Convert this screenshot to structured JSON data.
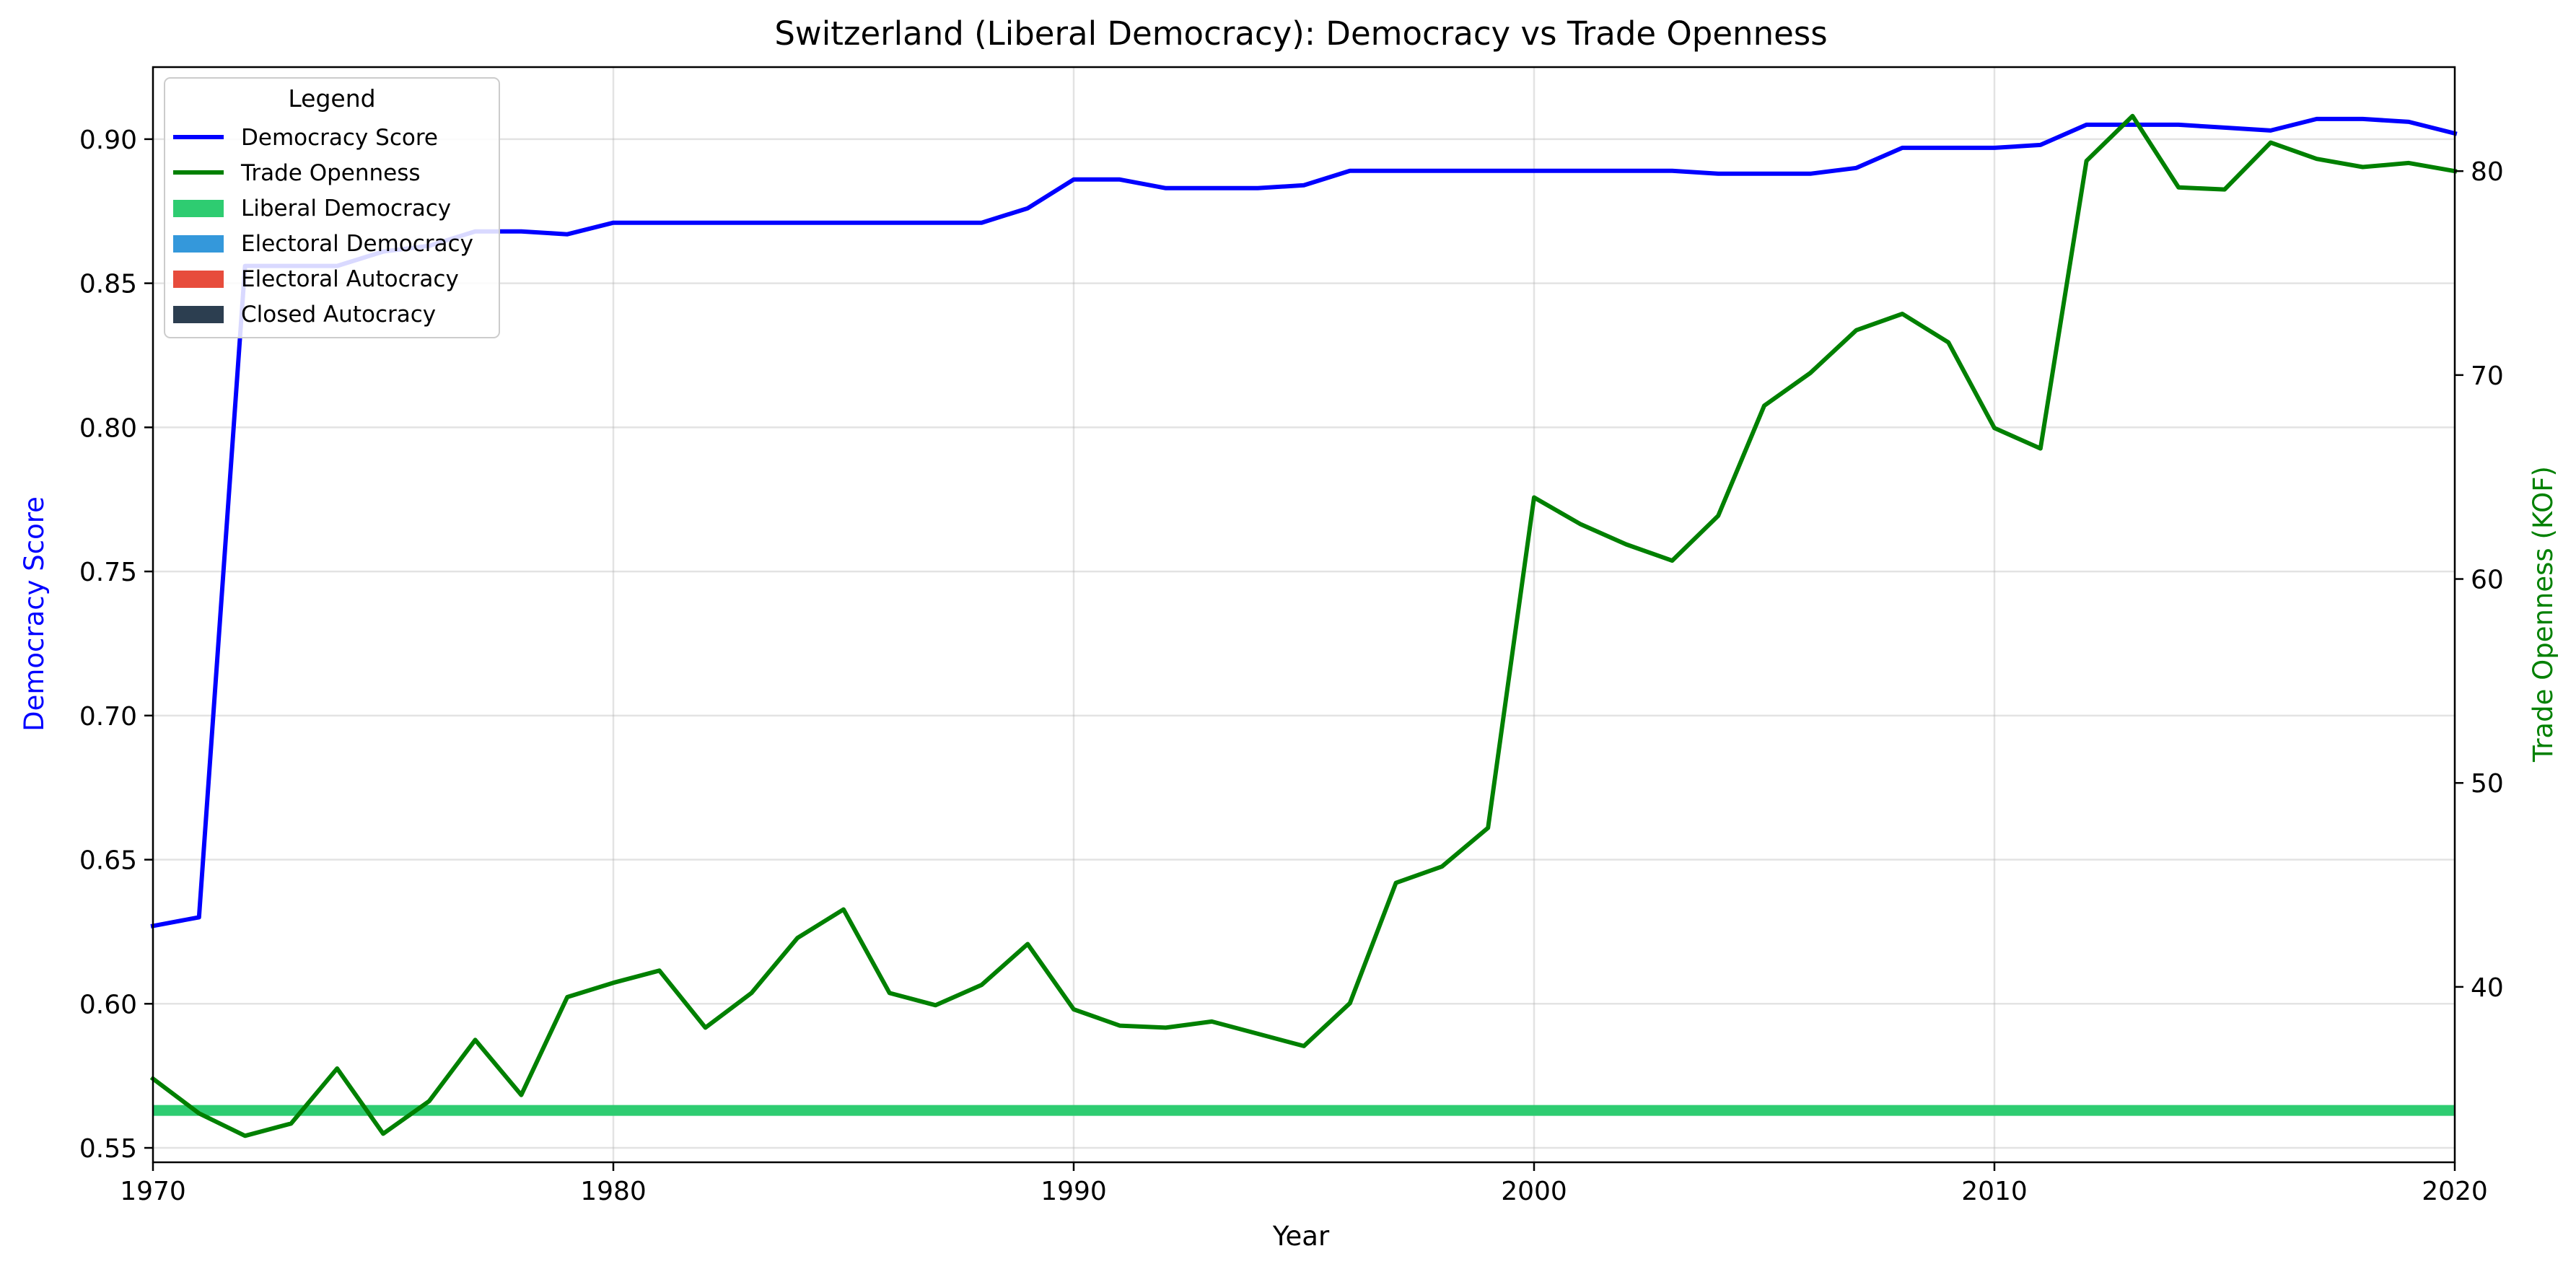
{
  "chart_data": {
    "type": "line",
    "title": "Switzerland (Liberal Democracy): Democracy vs Trade Openness",
    "xlabel": "Year",
    "ylabel_left": "Democracy Score",
    "ylabel_right": "Trade Openness (KOF)",
    "xlim": [
      1970,
      2020
    ],
    "ylim_left": [
      0.545,
      0.925
    ],
    "ylim_right": [
      31.4,
      85.1
    ],
    "x_ticks": [
      1970,
      1980,
      1990,
      2000,
      2010,
      2020
    ],
    "y_left_ticks": [
      "0.55",
      "0.60",
      "0.65",
      "0.70",
      "0.75",
      "0.80",
      "0.85",
      "0.90"
    ],
    "y_right_ticks": [
      40,
      50,
      60,
      70,
      80
    ],
    "grid": true,
    "legend": {
      "title": "Legend",
      "placement": "top-left",
      "entries": [
        {
          "label": "Democracy Score",
          "kind": "line",
          "color": "#0000ff"
        },
        {
          "label": "Trade Openness",
          "kind": "line",
          "color": "#008000"
        },
        {
          "label": "Liberal Democracy",
          "kind": "patch",
          "color": "#2ecc71"
        },
        {
          "label": "Electoral Democracy",
          "kind": "patch",
          "color": "#3498db"
        },
        {
          "label": "Electoral Autocracy",
          "kind": "patch",
          "color": "#e74c3c"
        },
        {
          "label": "Closed Autocracy",
          "kind": "patch",
          "color": "#2c3e50"
        }
      ]
    },
    "regime_band": {
      "label": "Liberal Democracy",
      "color": "#2ecc71",
      "from": 1970,
      "to": 2020
    },
    "series": [
      {
        "name": "Democracy Score",
        "axis": "left",
        "color": "#0000ff",
        "x": [
          1970,
          1971,
          1972,
          1973,
          1974,
          1975,
          1976,
          1977,
          1978,
          1979,
          1980,
          1981,
          1982,
          1983,
          1984,
          1985,
          1986,
          1987,
          1988,
          1989,
          1990,
          1991,
          1992,
          1993,
          1994,
          1995,
          1996,
          1997,
          1998,
          1999,
          2000,
          2001,
          2002,
          2003,
          2004,
          2005,
          2006,
          2007,
          2008,
          2009,
          2010,
          2011,
          2012,
          2013,
          2014,
          2015,
          2016,
          2017,
          2018,
          2019,
          2020
        ],
        "values": [
          0.627,
          0.63,
          0.856,
          0.856,
          0.856,
          0.861,
          0.863,
          0.868,
          0.868,
          0.867,
          0.871,
          0.871,
          0.871,
          0.871,
          0.871,
          0.871,
          0.871,
          0.871,
          0.871,
          0.876,
          0.886,
          0.886,
          0.883,
          0.883,
          0.883,
          0.884,
          0.889,
          0.889,
          0.889,
          0.889,
          0.889,
          0.889,
          0.889,
          0.889,
          0.888,
          0.888,
          0.888,
          0.89,
          0.897,
          0.897,
          0.897,
          0.898,
          0.905,
          0.905,
          0.905,
          0.904,
          0.903,
          0.907,
          0.907,
          0.906,
          0.902
        ]
      },
      {
        "name": "Trade Openness",
        "axis": "right",
        "color": "#008000",
        "x": [
          1970,
          1971,
          1972,
          1973,
          1974,
          1975,
          1976,
          1977,
          1978,
          1979,
          1980,
          1981,
          1982,
          1983,
          1984,
          1985,
          1986,
          1987,
          1988,
          1989,
          1990,
          1991,
          1992,
          1993,
          1994,
          1995,
          1996,
          1997,
          1998,
          1999,
          2000,
          2001,
          2002,
          2003,
          2004,
          2005,
          2006,
          2007,
          2008,
          2009,
          2010,
          2011,
          2012,
          2013,
          2014,
          2015,
          2016,
          2017,
          2018,
          2019,
          2020
        ],
        "values": [
          35.5,
          33.8,
          32.7,
          33.3,
          36.0,
          32.8,
          34.4,
          37.4,
          34.7,
          39.5,
          40.2,
          40.8,
          38.0,
          39.7,
          42.4,
          43.8,
          39.7,
          39.1,
          40.1,
          42.1,
          38.9,
          38.1,
          38.0,
          38.3,
          37.7,
          37.1,
          39.2,
          45.1,
          45.9,
          47.8,
          64.0,
          62.7,
          61.7,
          60.9,
          63.1,
          68.5,
          70.1,
          72.2,
          73.0,
          71.6,
          67.4,
          66.4,
          80.5,
          82.7,
          79.2,
          79.1,
          81.4,
          80.6,
          80.2,
          80.4,
          80.0
        ]
      }
    ]
  }
}
